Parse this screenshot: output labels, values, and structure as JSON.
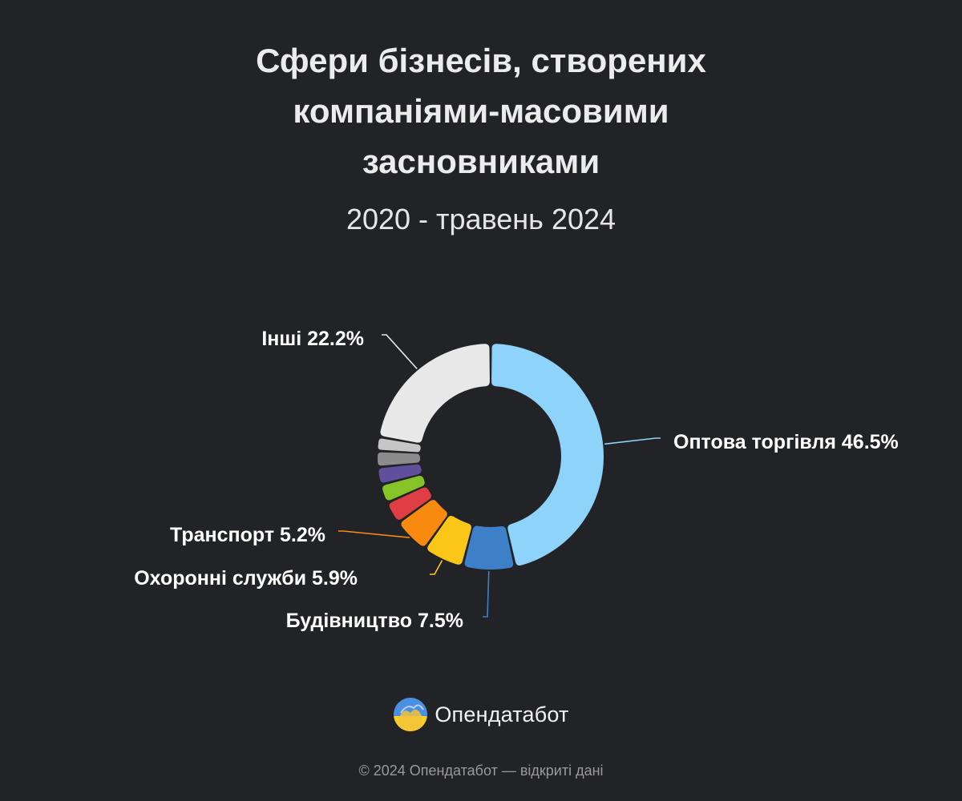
{
  "title": {
    "line1": "Сфери бізнесів, створених",
    "line2": "компаніями-масовими",
    "line3": "засновниками"
  },
  "subtitle": "2020 - травень 2024",
  "chart_data": {
    "type": "pie",
    "variant": "donut",
    "title": "Сфери бізнесів, створених компаніями-масовими засновниками",
    "subtitle": "2020 - травень 2024",
    "unit": "%",
    "slices": [
      {
        "name": "Оптова торгівля",
        "value": 46.5,
        "label": "Оптова торгівля 46.5%",
        "color": "#8dd3fa"
      },
      {
        "name": "Будівництво",
        "value": 7.5,
        "label": "Будівництво 7.5%",
        "color": "#3d80c8"
      },
      {
        "name": "Охоронні служби",
        "value": 5.9,
        "label": "Охоронні служби 5.9%",
        "color": "#fac719"
      },
      {
        "name": "Транспорт",
        "value": 5.2,
        "label": "Транспорт 5.2%",
        "color": "#f98a10"
      },
      {
        "name": "",
        "value": 3.2,
        "label": "",
        "color": "#e03e45"
      },
      {
        "name": "",
        "value": 2.7,
        "label": "",
        "color": "#86c326"
      },
      {
        "name": "",
        "value": 2.5,
        "label": "",
        "color": "#5f4f9c"
      },
      {
        "name": "",
        "value": 2.3,
        "label": "",
        "color": "#8c8c8c"
      },
      {
        "name": "",
        "value": 2.0,
        "label": "",
        "color": "#c6c6c6"
      },
      {
        "name": "Інші",
        "value": 22.2,
        "label": "Інші 22.2%",
        "color": "#e8e8e8"
      }
    ],
    "legend": "none"
  },
  "brand": {
    "name": "Опендатабот",
    "logo_icon": "opendatabot-logo-icon"
  },
  "copyright": "© 2024 Опендатабот — відкриті дані"
}
